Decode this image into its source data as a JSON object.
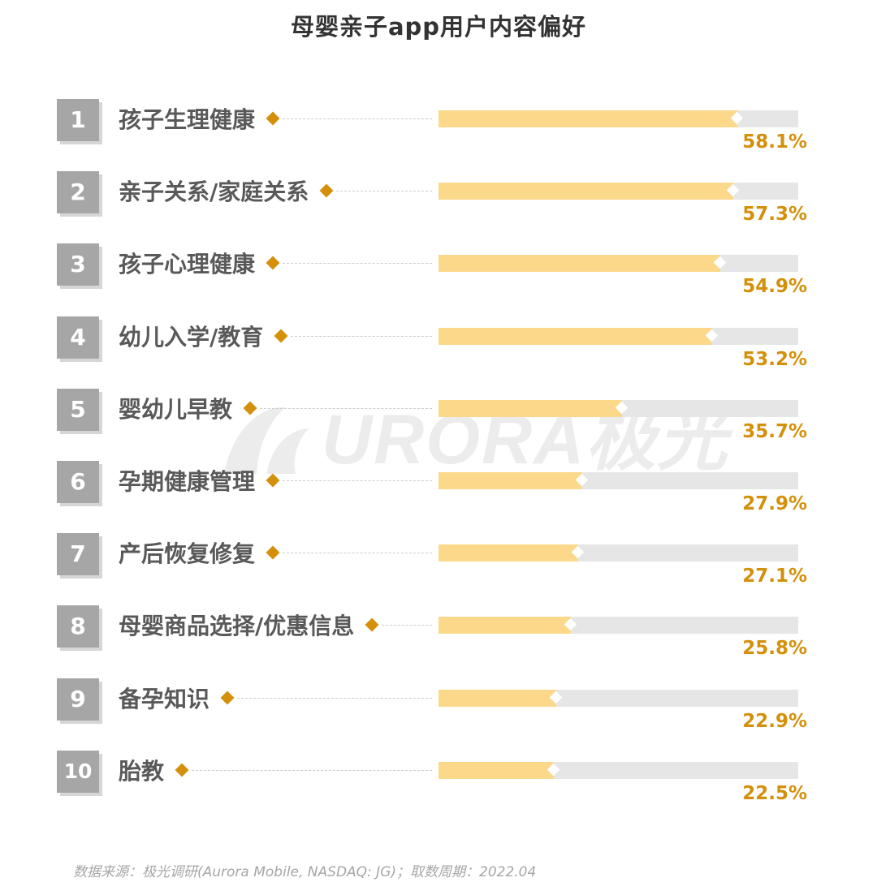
{
  "title": "母婴亲子app用户内容偏好",
  "watermark": {
    "text": "URORA极光",
    "color": "#ececec"
  },
  "source": "数据来源：极光调研(Aurora Mobile, NASDAQ: JG)；取数周期：2022.04",
  "colors": {
    "bar_fill": "#fcd88a",
    "bar_track": "#e6e6e6",
    "accent": "#d4900a",
    "rank_box": "#a6a6a6",
    "label": "#595959",
    "title": "#333333"
  },
  "chart_data": {
    "type": "bar",
    "orientation": "horizontal",
    "title": "母婴亲子app用户内容偏好",
    "unit": "%",
    "xlim": [
      0,
      70
    ],
    "grid": false,
    "categories": [
      {
        "rank": "1",
        "label": "孩子生理健康",
        "value": 58.1,
        "value_label": "58.1%"
      },
      {
        "rank": "2",
        "label": "亲子关系/家庭关系",
        "value": 57.3,
        "value_label": "57.3%"
      },
      {
        "rank": "3",
        "label": "孩子心理健康",
        "value": 54.9,
        "value_label": "54.9%"
      },
      {
        "rank": "4",
        "label": "幼儿入学/教育",
        "value": 53.2,
        "value_label": "53.2%"
      },
      {
        "rank": "5",
        "label": "婴幼儿早教",
        "value": 35.7,
        "value_label": "35.7%"
      },
      {
        "rank": "6",
        "label": "孕期健康管理",
        "value": 27.9,
        "value_label": "27.9%"
      },
      {
        "rank": "7",
        "label": "产后恢复修复",
        "value": 27.1,
        "value_label": "27.1%"
      },
      {
        "rank": "8",
        "label": "母婴商品选择/优惠信息",
        "value": 25.8,
        "value_label": "25.8%"
      },
      {
        "rank": "9",
        "label": "备孕知识",
        "value": 22.9,
        "value_label": "22.9%"
      },
      {
        "rank": "10",
        "label": "胎教",
        "value": 22.5,
        "value_label": "22.5%"
      }
    ]
  }
}
